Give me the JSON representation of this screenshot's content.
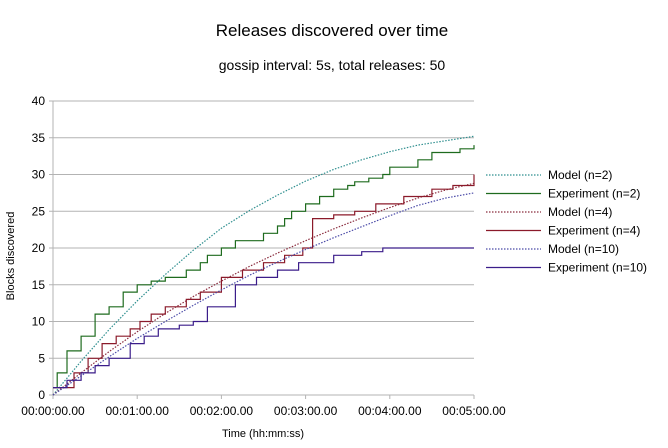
{
  "chart_data": {
    "type": "line",
    "title": "Releases discovered over time",
    "subtitle": "gossip interval: 5s, total releases: 50",
    "xlabel": "Time (hh:mm:ss)",
    "ylabel": "Blocks discovered",
    "xlim": [
      0,
      300
    ],
    "ylim": [
      0,
      40
    ],
    "x_ticks": [
      {
        "value": 0,
        "label": "00:00:00.00"
      },
      {
        "value": 60,
        "label": "00:01:00.00"
      },
      {
        "value": 120,
        "label": "00:02:00.00"
      },
      {
        "value": 180,
        "label": "00:03:00.00"
      },
      {
        "value": 240,
        "label": "00:04:00.00"
      },
      {
        "value": 300,
        "label": "00:05:00.00"
      }
    ],
    "y_ticks": [
      0,
      5,
      10,
      15,
      20,
      25,
      30,
      35,
      40
    ],
    "grid": "horizontal",
    "legend_position": "right",
    "series": [
      {
        "name": "Model (n=2)",
        "style": "dotted",
        "color": "#2f8f8f",
        "x": [
          0,
          20,
          40,
          60,
          80,
          100,
          120,
          140,
          160,
          180,
          200,
          220,
          240,
          260,
          280,
          300
        ],
        "y": [
          0,
          4.6,
          8.9,
          12.8,
          16.4,
          19.7,
          22.7,
          25.1,
          27.2,
          29.1,
          30.7,
          32.0,
          33.1,
          34.0,
          34.6,
          35.2
        ]
      },
      {
        "name": "Experiment (n=2)",
        "style": "solid",
        "color": "#1e6b1e",
        "x": [
          0,
          3,
          10,
          20,
          30,
          40,
          50,
          60,
          70,
          80,
          95,
          105,
          110,
          120,
          130,
          150,
          160,
          165,
          170,
          180,
          190,
          200,
          210,
          215,
          225,
          235,
          240,
          260,
          270,
          290,
          300
        ],
        "y": [
          1,
          3,
          6,
          8,
          11,
          12,
          14,
          15,
          15.5,
          16,
          17,
          18,
          19,
          20,
          21,
          22,
          23,
          24,
          25,
          26,
          27,
          28,
          28.5,
          29,
          29.5,
          30,
          31,
          32,
          33,
          33.5,
          34
        ]
      },
      {
        "name": "Model (n=4)",
        "style": "dotted",
        "color": "#8a2c3e",
        "x": [
          0,
          20,
          40,
          60,
          80,
          100,
          120,
          140,
          160,
          180,
          200,
          220,
          240,
          260,
          280,
          300
        ],
        "y": [
          0,
          3.0,
          5.9,
          8.6,
          11.1,
          13.4,
          15.5,
          17.5,
          19.3,
          21.0,
          22.6,
          24.1,
          25.5,
          26.8,
          27.9,
          28.8
        ]
      },
      {
        "name": "Experiment (n=4)",
        "style": "solid",
        "color": "#8b1a2a",
        "x": [
          0,
          15,
          25,
          35,
          45,
          55,
          62,
          70,
          80,
          95,
          105,
          120,
          135,
          150,
          165,
          178,
          185,
          200,
          215,
          230,
          250,
          270,
          285,
          300
        ],
        "y": [
          1,
          3,
          5,
          7,
          8,
          9,
          10,
          11,
          12,
          13,
          14,
          16,
          17,
          18,
          19,
          20,
          24,
          24.5,
          25,
          26,
          27,
          28,
          28.5,
          30
        ]
      },
      {
        "name": "Model (n=10)",
        "style": "dotted",
        "color": "#4b4ba8",
        "x": [
          0,
          20,
          40,
          60,
          80,
          100,
          120,
          140,
          160,
          180,
          200,
          220,
          240,
          260,
          280,
          300
        ],
        "y": [
          0,
          2.6,
          5.2,
          7.7,
          10.0,
          12.2,
          14.3,
          16.3,
          18.1,
          19.8,
          21.4,
          22.9,
          24.4,
          25.8,
          26.8,
          27.5
        ]
      },
      {
        "name": "Experiment (n=10)",
        "style": "solid",
        "color": "#3b1d8a",
        "x": [
          0,
          10,
          20,
          30,
          40,
          55,
          65,
          75,
          90,
          100,
          110,
          130,
          145,
          160,
          175,
          200,
          220,
          235,
          300
        ],
        "y": [
          1,
          2,
          3,
          4,
          5,
          7,
          8,
          9,
          9.5,
          10,
          12,
          15,
          16,
          17,
          18,
          19,
          19.5,
          20,
          20
        ]
      }
    ]
  }
}
